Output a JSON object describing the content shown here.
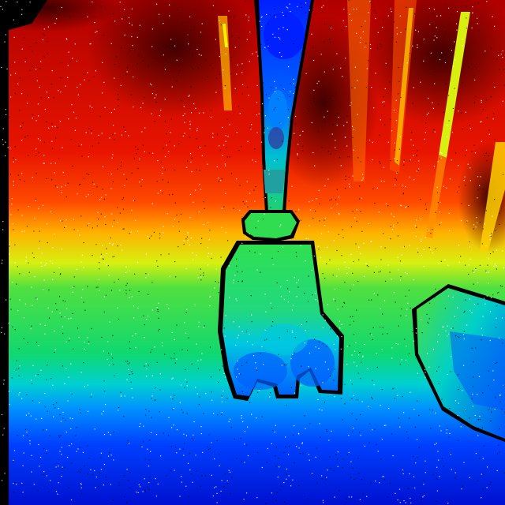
{
  "image": {
    "kind": "depth-map",
    "colormap": "jet",
    "colors": {
      "far": "#d80000",
      "mid_far": "#ff5a00",
      "mid": "#f0d000",
      "near_mid": "#20e050",
      "near": "#00c8e0",
      "nearest": "#0030ff",
      "invalid": "#000000"
    },
    "content": {
      "left_border": "invalid-depth-column",
      "center_object": "robotic-gripper-arm",
      "right_object": "box",
      "background": "vertical-bars",
      "noise": "speckle"
    }
  }
}
